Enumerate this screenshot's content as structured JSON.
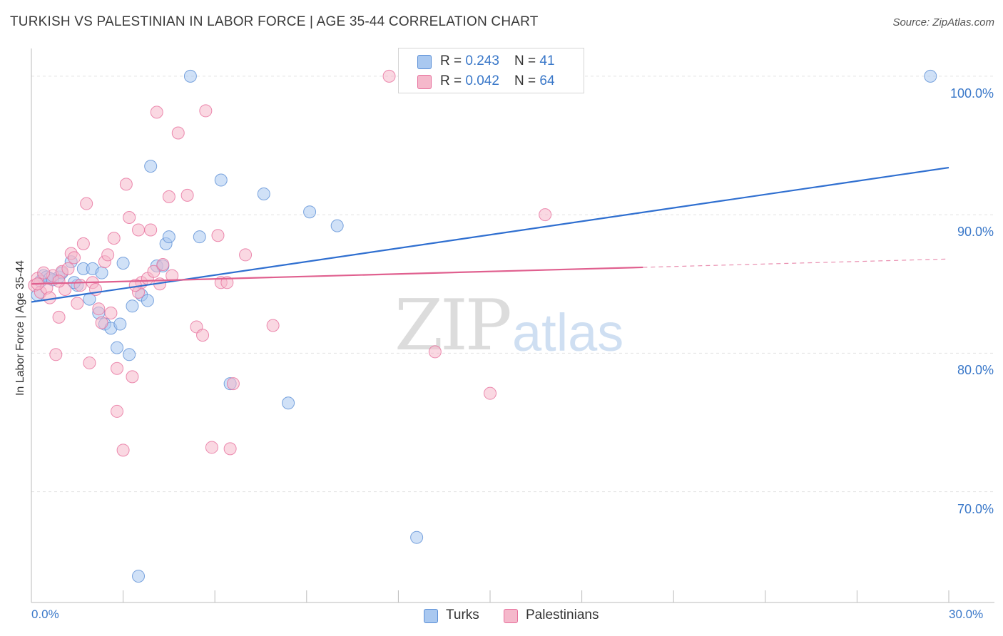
{
  "header": {
    "title": "TURKISH VS PALESTINIAN IN LABOR FORCE | AGE 35-44 CORRELATION CHART",
    "source": "Source: ZipAtlas.com"
  },
  "watermark": {
    "zip": "ZIP",
    "atlas": "atlas"
  },
  "legend": {
    "rows": [
      {
        "r_label": "R = ",
        "r_value": "0.243",
        "n_label": "N = ",
        "n_value": "41",
        "color": "#a9c8f0"
      },
      {
        "r_label": "R = ",
        "r_value": "0.042",
        "n_label": "N = ",
        "n_value": "64",
        "color": "#f5b8cb"
      }
    ]
  },
  "bottom_legend": [
    {
      "label": "Turks",
      "color": "#a9c8f0"
    },
    {
      "label": "Palestinians",
      "color": "#f5b8cb"
    }
  ],
  "chart_data": {
    "type": "scatter",
    "ylabel": "In Labor Force | Age 35-44",
    "xlabel": "",
    "xlim": [
      0,
      30
    ],
    "ylim": [
      62,
      102
    ],
    "x_tick_labels": {
      "min": "0.0%",
      "max": "30.0%"
    },
    "y_ticks": [
      {
        "value": 100,
        "label": "100.0%"
      },
      {
        "value": 90,
        "label": "90.0%"
      },
      {
        "value": 80,
        "label": "80.0%"
      },
      {
        "value": 70,
        "label": "70.0%"
      }
    ],
    "grid": true,
    "series": [
      {
        "name": "Turks",
        "color": "#5b8fd6",
        "fill": "#a9c8f0",
        "trend": {
          "x": [
            0,
            30
          ],
          "y": [
            83.7,
            93.4
          ],
          "dashed_after": null
        },
        "points": [
          [
            0.2,
            84.2
          ],
          [
            0.4,
            85.6
          ],
          [
            0.5,
            85.5
          ],
          [
            0.7,
            85.3
          ],
          [
            0.9,
            85.5
          ],
          [
            1.3,
            86.6
          ],
          [
            1.5,
            84.9
          ],
          [
            1.7,
            86.1
          ],
          [
            1.9,
            83.9
          ],
          [
            2.0,
            86.1
          ],
          [
            2.2,
            82.9
          ],
          [
            2.3,
            85.8
          ],
          [
            2.4,
            82.1
          ],
          [
            2.6,
            81.8
          ],
          [
            2.8,
            80.4
          ],
          [
            2.9,
            82.1
          ],
          [
            3.0,
            86.5
          ],
          [
            3.2,
            79.9
          ],
          [
            3.3,
            83.4
          ],
          [
            3.5,
            63.9
          ],
          [
            3.6,
            84.2
          ],
          [
            3.8,
            83.8
          ],
          [
            3.9,
            93.5
          ],
          [
            4.1,
            86.3
          ],
          [
            4.3,
            86.3
          ],
          [
            4.4,
            87.9
          ],
          [
            4.5,
            88.4
          ],
          [
            5.2,
            100.0
          ],
          [
            5.5,
            88.4
          ],
          [
            6.2,
            92.5
          ],
          [
            6.5,
            77.8
          ],
          [
            7.6,
            91.5
          ],
          [
            8.4,
            76.4
          ],
          [
            9.1,
            90.2
          ],
          [
            10.0,
            89.2
          ],
          [
            12.6,
            66.7
          ],
          [
            29.4,
            100.0
          ],
          [
            0.6,
            85.4
          ],
          [
            1.0,
            85.8
          ],
          [
            1.4,
            85.1
          ],
          [
            0.3,
            85.2
          ]
        ]
      },
      {
        "name": "Palestinians",
        "color": "#e76f9c",
        "fill": "#f5b8cb",
        "trend": {
          "x": [
            0,
            20
          ],
          "y": [
            85.0,
            86.2
          ],
          "dashed_to": [
            30,
            86.8
          ]
        },
        "points": [
          [
            0.1,
            84.9
          ],
          [
            0.2,
            85.4
          ],
          [
            0.3,
            84.4
          ],
          [
            0.5,
            84.7
          ],
          [
            0.6,
            84.0
          ],
          [
            0.7,
            85.6
          ],
          [
            0.8,
            79.9
          ],
          [
            0.9,
            82.6
          ],
          [
            1.0,
            85.9
          ],
          [
            1.1,
            84.6
          ],
          [
            1.2,
            86.1
          ],
          [
            1.3,
            87.2
          ],
          [
            1.4,
            86.9
          ],
          [
            1.5,
            83.6
          ],
          [
            1.7,
            87.9
          ],
          [
            1.8,
            90.8
          ],
          [
            1.9,
            79.3
          ],
          [
            2.0,
            85.1
          ],
          [
            2.1,
            84.6
          ],
          [
            2.3,
            82.2
          ],
          [
            2.4,
            86.6
          ],
          [
            2.5,
            87.1
          ],
          [
            2.6,
            82.9
          ],
          [
            2.7,
            88.3
          ],
          [
            2.8,
            75.8
          ],
          [
            2.8,
            78.9
          ],
          [
            3.0,
            73.0
          ],
          [
            3.1,
            92.2
          ],
          [
            3.2,
            89.8
          ],
          [
            3.3,
            78.3
          ],
          [
            3.5,
            88.9
          ],
          [
            3.5,
            84.4
          ],
          [
            3.6,
            85.1
          ],
          [
            3.8,
            85.4
          ],
          [
            3.9,
            88.9
          ],
          [
            4.0,
            85.9
          ],
          [
            4.1,
            97.4
          ],
          [
            4.3,
            86.4
          ],
          [
            4.5,
            91.3
          ],
          [
            4.6,
            85.6
          ],
          [
            4.8,
            95.9
          ],
          [
            5.1,
            91.4
          ],
          [
            5.4,
            81.9
          ],
          [
            5.6,
            81.3
          ],
          [
            5.7,
            97.5
          ],
          [
            5.9,
            73.2
          ],
          [
            6.1,
            88.5
          ],
          [
            6.2,
            85.1
          ],
          [
            6.4,
            85.1
          ],
          [
            6.5,
            73.1
          ],
          [
            6.6,
            77.8
          ],
          [
            7.0,
            87.1
          ],
          [
            7.9,
            82.0
          ],
          [
            11.7,
            100.0
          ],
          [
            13.2,
            80.1
          ],
          [
            15.0,
            77.1
          ],
          [
            16.8,
            90.0
          ],
          [
            0.4,
            85.8
          ],
          [
            0.9,
            85.2
          ],
          [
            1.6,
            84.9
          ],
          [
            2.2,
            83.2
          ],
          [
            3.4,
            84.9
          ],
          [
            4.2,
            85.0
          ],
          [
            0.2,
            85.0
          ]
        ]
      }
    ]
  }
}
